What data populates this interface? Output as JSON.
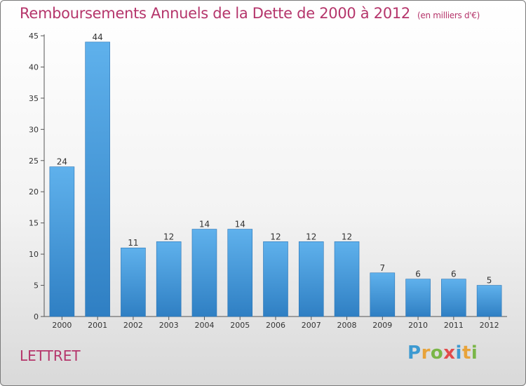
{
  "title": "Remboursements Annuels de la Dette de 2000 à 2012",
  "unit": "(en milliers d'€)",
  "commune": "LETTRET",
  "logo": {
    "text": "Proxiti",
    "letters": [
      {
        "ch": "P",
        "color": "#3d9ad1"
      },
      {
        "ch": "r",
        "color": "#e8a33a"
      },
      {
        "ch": "o",
        "color": "#7ab648"
      },
      {
        "ch": "x",
        "color": "#e24b4b"
      },
      {
        "ch": "i",
        "color": "#3d9ad1"
      },
      {
        "ch": "t",
        "color": "#e8a33a"
      },
      {
        "ch": "i",
        "color": "#7ab648"
      }
    ]
  },
  "chart_data": {
    "type": "bar",
    "title": "Remboursements Annuels de la Dette de 2000 à 2012",
    "xlabel": "",
    "ylabel": "",
    "ylim": [
      0,
      45
    ],
    "yticks": [
      0,
      5,
      10,
      15,
      20,
      25,
      30,
      35,
      40,
      45
    ],
    "grid": false,
    "categories": [
      "2000",
      "2001",
      "2002",
      "2003",
      "2004",
      "2005",
      "2006",
      "2007",
      "2008",
      "2009",
      "2010",
      "2011",
      "2012"
    ],
    "values": [
      24,
      44,
      11,
      12,
      14,
      14,
      12,
      12,
      12,
      7,
      6,
      6,
      5
    ],
    "bar_color": "#3a8fd6"
  }
}
